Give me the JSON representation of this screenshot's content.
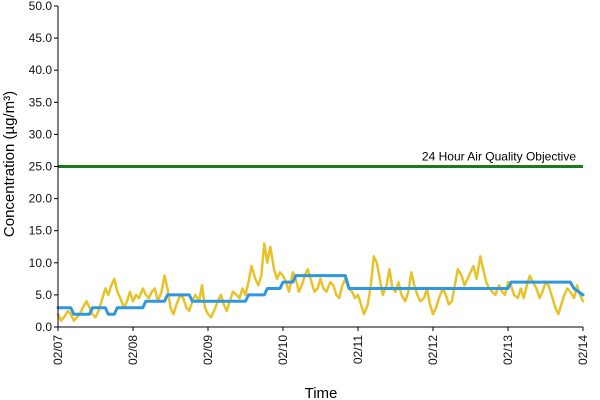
{
  "chart_data": {
    "type": "line",
    "title": "",
    "xlabel": "Time",
    "ylabel": "Concentration (µg/m³)",
    "ylim": [
      0,
      50
    ],
    "yticks": [
      "0.0",
      "5.0",
      "10.0",
      "15.0",
      "20.0",
      "25.0",
      "30.0",
      "35.0",
      "40.0",
      "45.0",
      "50.0"
    ],
    "xlim": [
      0,
      7
    ],
    "xticks": [
      "02/07",
      "02/08",
      "02/09",
      "02/10",
      "02/11",
      "02/12",
      "02/13",
      "02/14"
    ],
    "grid": false,
    "legend": "none",
    "objective": {
      "value": 25.0,
      "label": "24 Hour Air Quality Objective",
      "color": "#1a7a1a"
    },
    "series": [
      {
        "color": "#e8c22a",
        "x": [
          0.0,
          0.04,
          0.08,
          0.13,
          0.17,
          0.21,
          0.25,
          0.29,
          0.33,
          0.38,
          0.42,
          0.46,
          0.5,
          0.54,
          0.58,
          0.63,
          0.67,
          0.71,
          0.75,
          0.79,
          0.83,
          0.88,
          0.92,
          0.96,
          1.0,
          1.04,
          1.08,
          1.13,
          1.17,
          1.21,
          1.25,
          1.29,
          1.33,
          1.38,
          1.42,
          1.46,
          1.5,
          1.54,
          1.58,
          1.63,
          1.67,
          1.71,
          1.75,
          1.79,
          1.83,
          1.88,
          1.92,
          1.96,
          2.0,
          2.04,
          2.08,
          2.13,
          2.17,
          2.21,
          2.25,
          2.29,
          2.33,
          2.38,
          2.42,
          2.46,
          2.5,
          2.54,
          2.58,
          2.63,
          2.67,
          2.71,
          2.75,
          2.79,
          2.83,
          2.88,
          2.92,
          2.96,
          3.0,
          3.04,
          3.08,
          3.13,
          3.17,
          3.21,
          3.25,
          3.29,
          3.33,
          3.38,
          3.42,
          3.46,
          3.5,
          3.54,
          3.58,
          3.63,
          3.67,
          3.71,
          3.75,
          3.79,
          3.83,
          3.88,
          3.92,
          3.96,
          4.0,
          4.04,
          4.08,
          4.13,
          4.17,
          4.21,
          4.25,
          4.29,
          4.33,
          4.38,
          4.42,
          4.46,
          4.5,
          4.54,
          4.58,
          4.63,
          4.67,
          4.71,
          4.75,
          4.79,
          4.83,
          4.88,
          4.92,
          4.96,
          5.0,
          5.04,
          5.08,
          5.13,
          5.17,
          5.21,
          5.25,
          5.29,
          5.33,
          5.38,
          5.42,
          5.46,
          5.5,
          5.54,
          5.58,
          5.63,
          5.67,
          5.71,
          5.75,
          5.79,
          5.83,
          5.88,
          5.92,
          5.96,
          6.0,
          6.04,
          6.08,
          6.13,
          6.17,
          6.21,
          6.25,
          6.29,
          6.33,
          6.38,
          6.42,
          6.46,
          6.5,
          6.54,
          6.58,
          6.63,
          6.67,
          6.71,
          6.75,
          6.79,
          6.83,
          6.88,
          6.92,
          6.96,
          7.0
        ],
        "values": [
          2.0,
          1.0,
          1.5,
          2.5,
          2.0,
          1.0,
          1.5,
          2.0,
          3.0,
          4.0,
          3.0,
          2.0,
          1.5,
          2.5,
          4.0,
          6.0,
          5.0,
          6.5,
          7.5,
          5.5,
          4.5,
          3.0,
          4.0,
          5.5,
          4.0,
          5.0,
          4.5,
          6.0,
          5.0,
          4.5,
          5.5,
          6.0,
          4.0,
          5.5,
          8.0,
          6.0,
          3.0,
          2.0,
          3.5,
          5.0,
          4.5,
          3.0,
          2.5,
          4.0,
          5.0,
          4.0,
          6.5,
          3.0,
          2.0,
          1.5,
          2.5,
          4.0,
          5.0,
          3.5,
          2.5,
          4.0,
          5.5,
          5.0,
          4.5,
          6.0,
          5.0,
          7.0,
          9.5,
          7.5,
          6.5,
          8.0,
          13.0,
          10.0,
          12.5,
          9.0,
          7.5,
          8.5,
          8.0,
          7.0,
          5.5,
          8.5,
          7.5,
          5.5,
          6.5,
          8.0,
          9.0,
          7.0,
          5.5,
          6.0,
          7.5,
          6.0,
          5.5,
          7.0,
          6.5,
          5.0,
          4.5,
          6.5,
          7.5,
          6.0,
          5.5,
          4.5,
          5.0,
          3.5,
          2.0,
          3.5,
          6.5,
          11.0,
          10.0,
          7.5,
          5.0,
          6.5,
          9.0,
          6.0,
          5.5,
          7.0,
          5.0,
          4.0,
          5.5,
          8.5,
          6.5,
          5.0,
          4.0,
          4.5,
          6.0,
          3.5,
          2.0,
          3.0,
          4.5,
          6.0,
          5.0,
          3.5,
          4.0,
          6.5,
          9.0,
          8.0,
          6.5,
          7.5,
          8.5,
          9.5,
          7.5,
          11.0,
          9.0,
          7.0,
          6.0,
          5.5,
          5.0,
          6.5,
          5.5,
          5.0,
          7.0,
          6.5,
          5.0,
          4.5,
          6.0,
          4.5,
          6.5,
          8.0,
          7.0,
          6.0,
          4.5,
          5.5,
          7.0,
          6.5,
          5.0,
          3.0,
          2.0,
          3.5,
          5.0,
          6.0,
          5.5,
          4.5,
          6.5,
          5.0,
          4.0
        ]
      },
      {
        "color": "#2f97dd",
        "x": [
          0.0,
          0.17,
          0.21,
          0.42,
          0.46,
          0.63,
          0.67,
          0.75,
          0.79,
          0.92,
          0.96,
          1.13,
          1.17,
          1.42,
          1.46,
          1.75,
          1.79,
          2.0,
          2.04,
          2.5,
          2.54,
          2.75,
          2.79,
          2.96,
          3.0,
          3.13,
          3.17,
          3.42,
          3.46,
          3.83,
          3.88,
          4.0,
          4.04,
          4.5,
          4.54,
          5.0,
          5.04,
          5.5,
          5.54,
          6.0,
          6.04,
          6.5,
          6.54,
          6.83,
          6.88,
          7.0
        ],
        "values": [
          3.0,
          3.0,
          2.0,
          2.0,
          3.0,
          3.0,
          2.0,
          2.0,
          3.0,
          3.0,
          3.0,
          3.0,
          4.0,
          4.0,
          5.0,
          5.0,
          4.0,
          4.0,
          4.0,
          4.0,
          5.0,
          5.0,
          6.0,
          6.0,
          7.0,
          7.0,
          8.0,
          8.0,
          8.0,
          8.0,
          6.0,
          6.0,
          6.0,
          6.0,
          6.0,
          6.0,
          6.0,
          6.0,
          6.0,
          6.0,
          7.0,
          7.0,
          7.0,
          7.0,
          6.0,
          5.0
        ]
      }
    ]
  }
}
